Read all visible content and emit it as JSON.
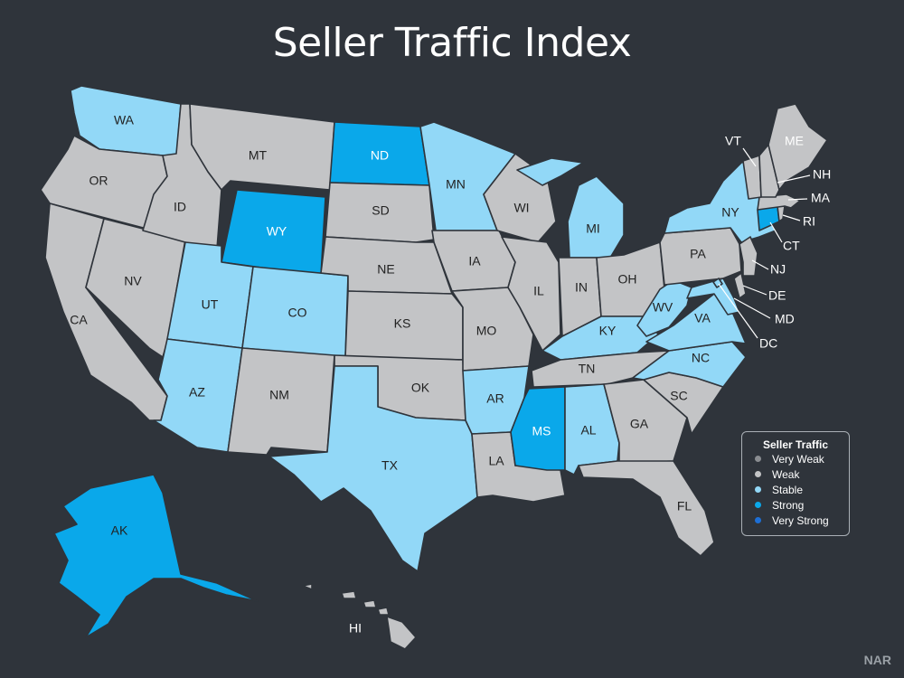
{
  "title": "Seller Traffic Index",
  "source": "NAR",
  "colors": {
    "background": "#2f343b",
    "very_weak": "#8a8d91",
    "weak": "#c3c4c6",
    "stable": "#92d8f7",
    "strong": "#0aa8ea",
    "very_strong": "#1d6fd6"
  },
  "legend": {
    "title": "Seller Traffic",
    "items": [
      {
        "label": "Very Weak",
        "key": "very_weak"
      },
      {
        "label": "Weak",
        "key": "weak"
      },
      {
        "label": "Stable",
        "key": "stable"
      },
      {
        "label": "Strong",
        "key": "strong"
      },
      {
        "label": "Very Strong",
        "key": "very_strong"
      }
    ]
  },
  "states": {
    "WA": "stable",
    "OR": "weak",
    "CA": "weak",
    "NV": "weak",
    "ID": "weak",
    "MT": "weak",
    "WY": "strong",
    "UT": "stable",
    "CO": "stable",
    "AZ": "stable",
    "NM": "weak",
    "ND": "strong",
    "SD": "weak",
    "NE": "weak",
    "KS": "weak",
    "OK": "weak",
    "TX": "stable",
    "MN": "stable",
    "IA": "weak",
    "MO": "weak",
    "AR": "stable",
    "LA": "weak",
    "WI": "weak",
    "IL": "weak",
    "MI": "stable",
    "IN": "weak",
    "OH": "weak",
    "KY": "stable",
    "TN": "weak",
    "MS": "strong",
    "AL": "stable",
    "GA": "weak",
    "FL": "weak",
    "SC": "weak",
    "NC": "stable",
    "VA": "stable",
    "WV": "stable",
    "PA": "weak",
    "NY": "stable",
    "VT": "weak",
    "NH": "weak",
    "ME": "weak",
    "MA": "weak",
    "RI": "weak",
    "CT": "strong",
    "NJ": "weak",
    "DE": "weak",
    "MD": "stable",
    "DC": "stable",
    "AK": "strong",
    "HI": "weak"
  },
  "labels": {
    "WA": "WA",
    "OR": "OR",
    "CA": "CA",
    "NV": "NV",
    "ID": "ID",
    "MT": "MT",
    "WY": "WY",
    "UT": "UT",
    "CO": "CO",
    "AZ": "AZ",
    "NM": "NM",
    "ND": "ND",
    "SD": "SD",
    "NE": "NE",
    "KS": "KS",
    "OK": "OK",
    "TX": "TX",
    "MN": "MN",
    "IA": "IA",
    "MO": "MO",
    "AR": "AR",
    "LA": "LA",
    "WI": "WI",
    "IL": "IL",
    "MI": "MI",
    "IN": "IN",
    "OH": "OH",
    "KY": "KY",
    "TN": "TN",
    "MS": "MS",
    "AL": "AL",
    "GA": "GA",
    "FL": "FL",
    "SC": "SC",
    "NC": "NC",
    "VA": "VA",
    "WV": "WV",
    "PA": "PA",
    "NY": "NY",
    "VT": "VT",
    "NH": "NH",
    "ME": "ME",
    "MA": "MA",
    "RI": "RI",
    "CT": "CT",
    "NJ": "NJ",
    "DE": "DE",
    "MD": "MD",
    "DC": "DC",
    "AK": "AK",
    "HI": "HI"
  }
}
